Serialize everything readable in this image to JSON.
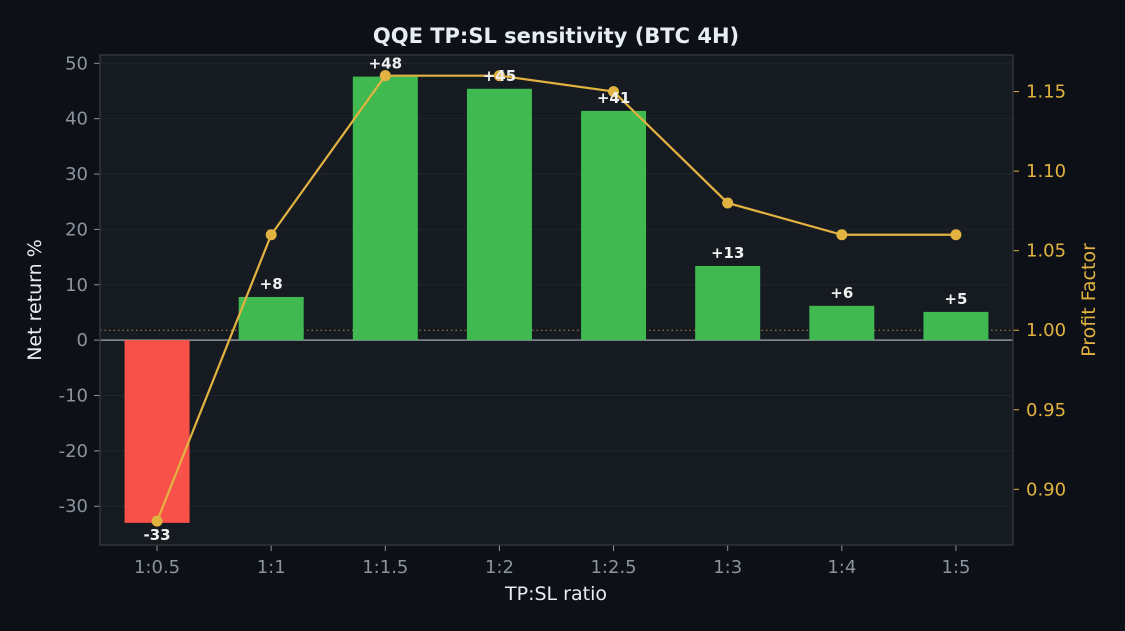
{
  "chart_data": {
    "type": "bar",
    "title": "QQE TP:SL sensitivity (BTC 4H)",
    "xlabel": "TP:SL ratio",
    "ylabel": "Net return %",
    "y2label": "Profit Factor",
    "categories": [
      "1:0.5",
      "1:1",
      "1:1.5",
      "1:2",
      "1:2.5",
      "1:3",
      "1:4",
      "1:5"
    ],
    "series": [
      {
        "name": "Net return %",
        "type": "bar",
        "axis": "left",
        "values": [
          -33,
          8,
          48,
          45,
          41,
          13,
          6,
          5
        ],
        "bar_values": [
          -33,
          7.8,
          47.6,
          45.4,
          41.4,
          13.4,
          6.2,
          5.1
        ],
        "labels": [
          "-33",
          "+8",
          "+48",
          "+45",
          "+41",
          "+13",
          "+6",
          "+5"
        ]
      },
      {
        "name": "Profit Factor",
        "type": "line",
        "axis": "right",
        "values": [
          0.88,
          1.06,
          1.16,
          1.16,
          1.15,
          1.08,
          1.06,
          1.06
        ]
      }
    ],
    "ylim": [
      -37,
      51.5
    ],
    "y2lim": [
      0.865,
      1.173
    ],
    "yticks": [
      -30,
      -20,
      -10,
      0,
      10,
      20,
      30,
      40,
      50
    ],
    "y2ticks": [
      0.9,
      0.95,
      1.0,
      1.05,
      1.1,
      1.15
    ],
    "y2_reference": 1.0,
    "grid": true,
    "colors": {
      "positive_bar": "#3fb950",
      "negative_bar": "#f85149",
      "line": "#e3b341",
      "background": "#0d1117",
      "plot_background": "#161b22",
      "text": "#e6edf3",
      "tick_text": "#8b949e"
    }
  }
}
